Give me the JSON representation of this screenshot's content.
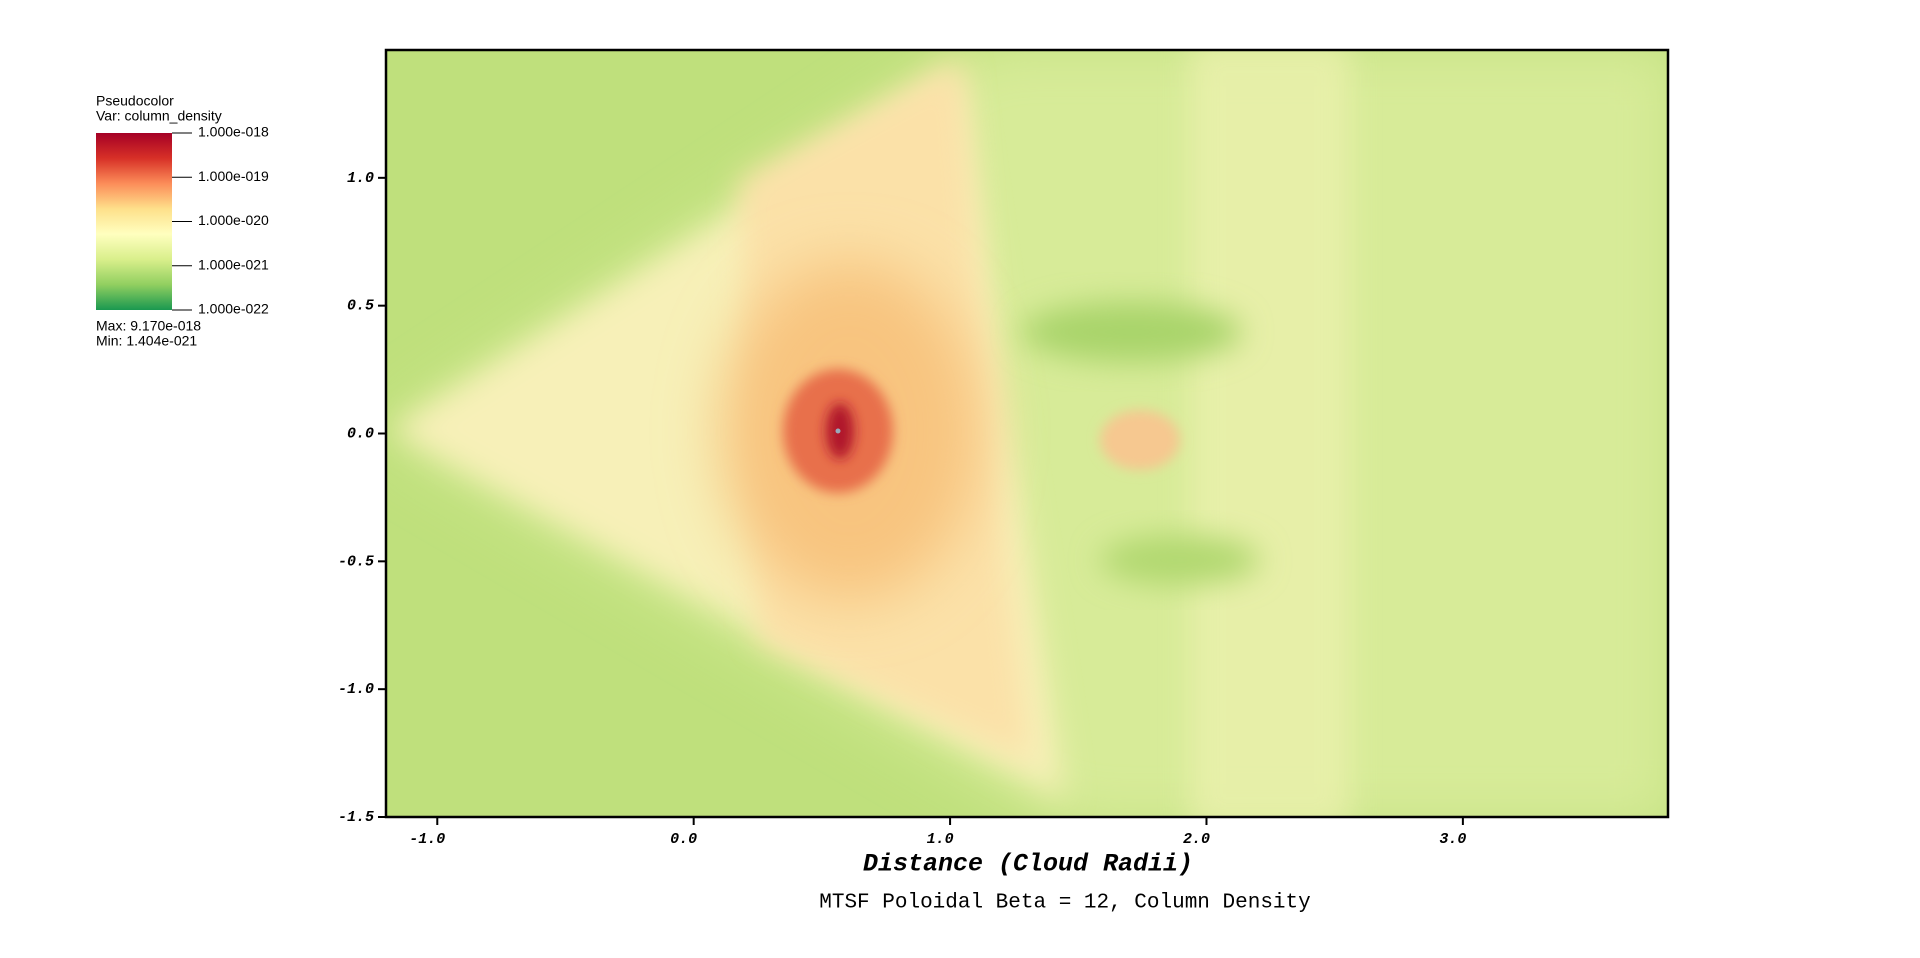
{
  "chart_data": {
    "type": "pseudocolor",
    "title": "MTSF Poloidal Beta = 12, Column Density",
    "x_label": "Distance (Cloud Radii)",
    "xlim": [
      -1.2,
      3.8
    ],
    "ylim": [
      -1.5,
      1.5
    ],
    "xticks": [
      {
        "value": -1,
        "label": "-1.0"
      },
      {
        "value": 0,
        "label": "0.0"
      },
      {
        "value": 1,
        "label": "1.0"
      },
      {
        "value": 2,
        "label": "2.0"
      },
      {
        "value": 3,
        "label": "3.0"
      }
    ],
    "yticks": [
      {
        "value": 1,
        "label": "1.0"
      },
      {
        "value": 0.5,
        "label": "0.5"
      },
      {
        "value": 0,
        "label": "0.0"
      },
      {
        "value": -0.5,
        "label": "-0.5"
      },
      {
        "value": -1,
        "label": "-1.0"
      },
      {
        "value": -1.5,
        "label": "-1.5"
      }
    ],
    "legend": {
      "title": "Pseudocolor",
      "variable": "Var: column_density",
      "log_scale": true,
      "clim": [
        1e-22,
        1e-18
      ],
      "ticks": [
        {
          "value": 1e-18,
          "label": "1.000e-018"
        },
        {
          "value": 1e-19,
          "label": "1.000e-019"
        },
        {
          "value": 1e-20,
          "label": "1.000e-020"
        },
        {
          "value": 1e-21,
          "label": "1.000e-021"
        },
        {
          "value": 1e-22,
          "label": "1.000e-022"
        }
      ],
      "colormap": [
        "#1a9850",
        "#91cf60",
        "#d9ef8b",
        "#ffffbf",
        "#fee08b",
        "#fc8d59",
        "#d73027",
        "#a50026"
      ],
      "max": "Max:  9.170e-018",
      "min": "Min:  1.404e-021"
    }
  }
}
